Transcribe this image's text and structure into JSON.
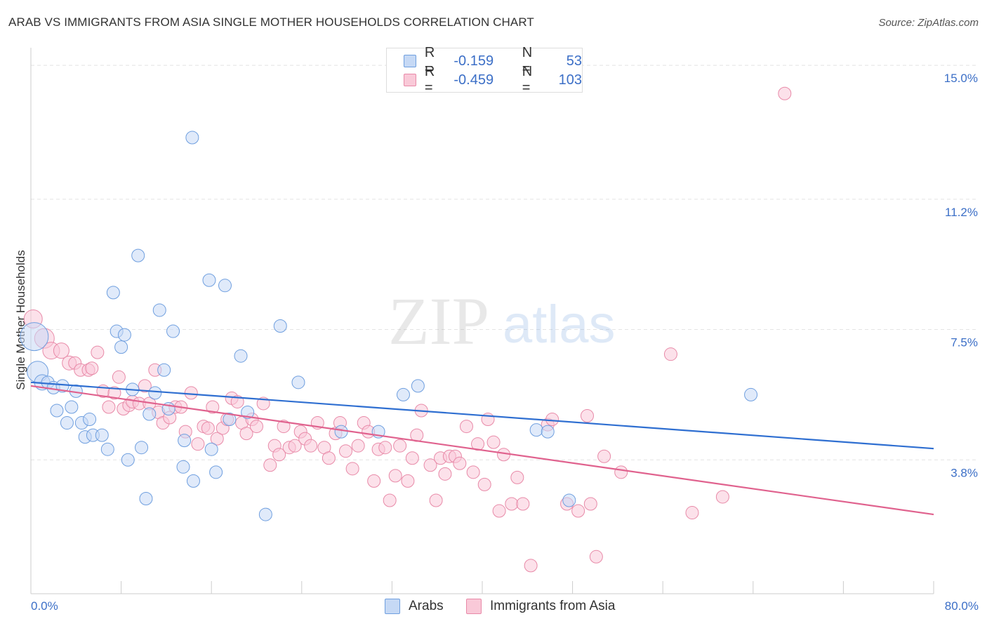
{
  "title": "ARAB VS IMMIGRANTS FROM ASIA SINGLE MOTHER HOUSEHOLDS CORRELATION CHART",
  "source": "Source: ZipAtlas.com",
  "watermark": {
    "zip": "ZIP",
    "atlas": "atlas"
  },
  "legend": {
    "r_label": "R =",
    "n_label": "N =",
    "arabs": {
      "r": "-0.159",
      "n": "53"
    },
    "asia": {
      "r": "-0.459",
      "n": "103"
    }
  },
  "bottom_legend": {
    "arabs": "Arabs",
    "asia": "Immigrants from Asia"
  },
  "colors": {
    "blue_fill": "#c6d9f5",
    "blue_stroke": "#6f9fdf",
    "blue_line": "#2f6fd1",
    "pink_fill": "#f9c9d8",
    "pink_stroke": "#e88aa8",
    "pink_line": "#e0628e",
    "tick_label": "#3c6fc7",
    "grid": "#e4e4e4"
  },
  "chart_data": {
    "type": "scatter",
    "title": "ARAB VS IMMIGRANTS FROM ASIA SINGLE MOTHER HOUSEHOLDS CORRELATION CHART",
    "xlabel": "",
    "ylabel": "Single Mother Households",
    "xlim": [
      0,
      80
    ],
    "ylim": [
      0,
      15.5
    ],
    "y_ticks": [
      3.8,
      7.5,
      11.2,
      15.0
    ],
    "y_tick_labels": [
      "3.8%",
      "7.5%",
      "11.2%",
      "15.0%"
    ],
    "x_tick_labels": [
      "0.0%",
      "80.0%"
    ],
    "x_minor_ticks": [
      8,
      16,
      24,
      32,
      40,
      48,
      56,
      64,
      72,
      80
    ],
    "grid": true,
    "series": [
      {
        "name": "Arabs",
        "r": -0.159,
        "n": 53,
        "trend": {
          "x0": 0,
          "y0": 6.0,
          "x1": 80,
          "y1": 4.12
        },
        "points": [
          [
            0.3,
            7.3,
            20
          ],
          [
            0.6,
            6.3,
            15
          ],
          [
            1.0,
            6.0,
            11
          ],
          [
            1.5,
            6.0,
            9
          ],
          [
            2.0,
            5.85,
            9
          ],
          [
            2.8,
            5.9,
            9
          ],
          [
            2.3,
            5.2,
            9
          ],
          [
            3.2,
            4.85,
            9
          ],
          [
            3.6,
            5.3,
            9
          ],
          [
            4.0,
            5.75,
            9
          ],
          [
            4.5,
            4.85,
            9
          ],
          [
            4.8,
            4.45,
            9
          ],
          [
            5.2,
            4.95,
            9
          ],
          [
            5.5,
            4.5,
            9
          ],
          [
            6.3,
            4.5,
            9
          ],
          [
            6.8,
            4.1,
            9
          ],
          [
            7.3,
            8.55,
            9
          ],
          [
            7.6,
            7.45,
            9
          ],
          [
            8.0,
            7.0,
            9
          ],
          [
            8.3,
            7.35,
            9
          ],
          [
            8.6,
            3.8,
            9
          ],
          [
            9.0,
            5.8,
            9
          ],
          [
            9.5,
            9.6,
            9
          ],
          [
            9.8,
            4.15,
            9
          ],
          [
            10.2,
            2.7,
            9
          ],
          [
            10.5,
            5.1,
            9
          ],
          [
            11.0,
            5.7,
            9
          ],
          [
            11.4,
            8.05,
            9
          ],
          [
            11.8,
            6.35,
            9
          ],
          [
            12.2,
            5.25,
            9
          ],
          [
            12.6,
            7.45,
            9
          ],
          [
            13.5,
            3.6,
            9
          ],
          [
            13.6,
            4.35,
            9
          ],
          [
            14.3,
            12.95,
            9
          ],
          [
            14.4,
            3.2,
            9
          ],
          [
            15.8,
            8.9,
            9
          ],
          [
            16.0,
            4.1,
            9
          ],
          [
            16.4,
            3.45,
            9
          ],
          [
            17.2,
            8.75,
            9
          ],
          [
            17.6,
            4.95,
            9
          ],
          [
            18.6,
            6.75,
            9
          ],
          [
            19.2,
            5.15,
            9
          ],
          [
            20.8,
            2.25,
            9
          ],
          [
            22.1,
            7.6,
            9
          ],
          [
            23.7,
            6.0,
            9
          ],
          [
            27.5,
            4.6,
            9
          ],
          [
            30.8,
            4.6,
            9
          ],
          [
            33.0,
            5.65,
            9
          ],
          [
            34.3,
            5.9,
            9
          ],
          [
            44.8,
            4.65,
            9
          ],
          [
            45.8,
            4.6,
            9
          ],
          [
            47.7,
            2.65,
            9
          ],
          [
            63.8,
            5.65,
            9
          ]
        ]
      },
      {
        "name": "Immigrants from Asia",
        "r": -0.459,
        "n": 103,
        "trend": {
          "x0": 0,
          "y0": 5.9,
          "x1": 80,
          "y1": 2.25
        },
        "points": [
          [
            0.2,
            7.8,
            13
          ],
          [
            1.2,
            7.25,
            14
          ],
          [
            1.8,
            6.9,
            12
          ],
          [
            2.7,
            6.9,
            11
          ],
          [
            3.4,
            6.55,
            10
          ],
          [
            3.9,
            6.55,
            9
          ],
          [
            4.4,
            6.35,
            9
          ],
          [
            5.1,
            6.35,
            9
          ],
          [
            5.4,
            6.4,
            9
          ],
          [
            5.9,
            6.85,
            9
          ],
          [
            6.4,
            5.75,
            9
          ],
          [
            6.9,
            5.3,
            9
          ],
          [
            7.4,
            5.7,
            9
          ],
          [
            7.8,
            6.15,
            9
          ],
          [
            8.2,
            5.25,
            9
          ],
          [
            8.7,
            5.35,
            9
          ],
          [
            9.0,
            5.45,
            9
          ],
          [
            9.6,
            5.4,
            9
          ],
          [
            10.1,
            5.9,
            9
          ],
          [
            10.5,
            5.4,
            9
          ],
          [
            11.0,
            6.35,
            9
          ],
          [
            11.3,
            5.15,
            9
          ],
          [
            11.7,
            4.85,
            9
          ],
          [
            12.3,
            5.0,
            9
          ],
          [
            12.8,
            5.3,
            9
          ],
          [
            13.3,
            5.3,
            9
          ],
          [
            13.7,
            4.6,
            9
          ],
          [
            14.2,
            5.7,
            9
          ],
          [
            14.8,
            4.25,
            9
          ],
          [
            15.3,
            4.75,
            9
          ],
          [
            15.7,
            4.7,
            9
          ],
          [
            16.1,
            5.3,
            9
          ],
          [
            16.5,
            4.4,
            9
          ],
          [
            17.0,
            4.7,
            9
          ],
          [
            17.4,
            4.95,
            9
          ],
          [
            17.8,
            5.55,
            9
          ],
          [
            18.3,
            5.45,
            9
          ],
          [
            18.7,
            4.85,
            9
          ],
          [
            19.1,
            4.55,
            9
          ],
          [
            19.6,
            4.95,
            9
          ],
          [
            20.0,
            4.75,
            9
          ],
          [
            20.6,
            5.4,
            9
          ],
          [
            21.2,
            3.65,
            9
          ],
          [
            21.6,
            4.2,
            9
          ],
          [
            22.0,
            3.95,
            9
          ],
          [
            22.4,
            4.75,
            9
          ],
          [
            22.9,
            4.15,
            9
          ],
          [
            23.4,
            4.2,
            9
          ],
          [
            23.9,
            4.6,
            9
          ],
          [
            24.3,
            4.4,
            9
          ],
          [
            24.8,
            4.2,
            9
          ],
          [
            25.4,
            4.85,
            9
          ],
          [
            26.0,
            4.15,
            9
          ],
          [
            26.4,
            3.85,
            9
          ],
          [
            27.0,
            4.55,
            9
          ],
          [
            27.4,
            4.85,
            9
          ],
          [
            27.9,
            4.05,
            9
          ],
          [
            28.5,
            3.55,
            9
          ],
          [
            29.0,
            4.2,
            9
          ],
          [
            29.5,
            4.85,
            9
          ],
          [
            29.9,
            4.6,
            9
          ],
          [
            30.4,
            3.2,
            9
          ],
          [
            30.8,
            4.1,
            9
          ],
          [
            31.4,
            4.15,
            9
          ],
          [
            31.8,
            2.65,
            9
          ],
          [
            32.3,
            3.35,
            9
          ],
          [
            32.7,
            4.2,
            9
          ],
          [
            33.4,
            3.2,
            9
          ],
          [
            33.8,
            3.85,
            9
          ],
          [
            34.2,
            4.5,
            9
          ],
          [
            34.6,
            5.2,
            9
          ],
          [
            35.4,
            3.65,
            9
          ],
          [
            35.9,
            2.65,
            9
          ],
          [
            36.3,
            3.85,
            9
          ],
          [
            36.7,
            3.4,
            9
          ],
          [
            37.1,
            3.9,
            9
          ],
          [
            37.6,
            3.9,
            9
          ],
          [
            38.0,
            3.7,
            9
          ],
          [
            38.6,
            4.75,
            9
          ],
          [
            39.2,
            3.45,
            9
          ],
          [
            39.6,
            4.25,
            9
          ],
          [
            40.2,
            3.1,
            9
          ],
          [
            40.5,
            4.95,
            9
          ],
          [
            41.0,
            4.3,
            9
          ],
          [
            41.5,
            2.35,
            9
          ],
          [
            41.9,
            3.95,
            9
          ],
          [
            42.6,
            2.55,
            9
          ],
          [
            43.1,
            3.3,
            9
          ],
          [
            43.6,
            2.55,
            9
          ],
          [
            44.3,
            0.8,
            9
          ],
          [
            45.8,
            4.8,
            9
          ],
          [
            46.2,
            4.95,
            9
          ],
          [
            47.5,
            2.55,
            9
          ],
          [
            48.5,
            2.35,
            9
          ],
          [
            49.3,
            5.05,
            9
          ],
          [
            49.6,
            2.55,
            9
          ],
          [
            50.1,
            1.05,
            9
          ],
          [
            50.8,
            3.9,
            9
          ],
          [
            52.3,
            3.45,
            9
          ],
          [
            56.7,
            6.8,
            9
          ],
          [
            58.6,
            2.3,
            9
          ],
          [
            61.3,
            2.75,
            9
          ],
          [
            66.8,
            14.2,
            9
          ]
        ]
      }
    ]
  }
}
